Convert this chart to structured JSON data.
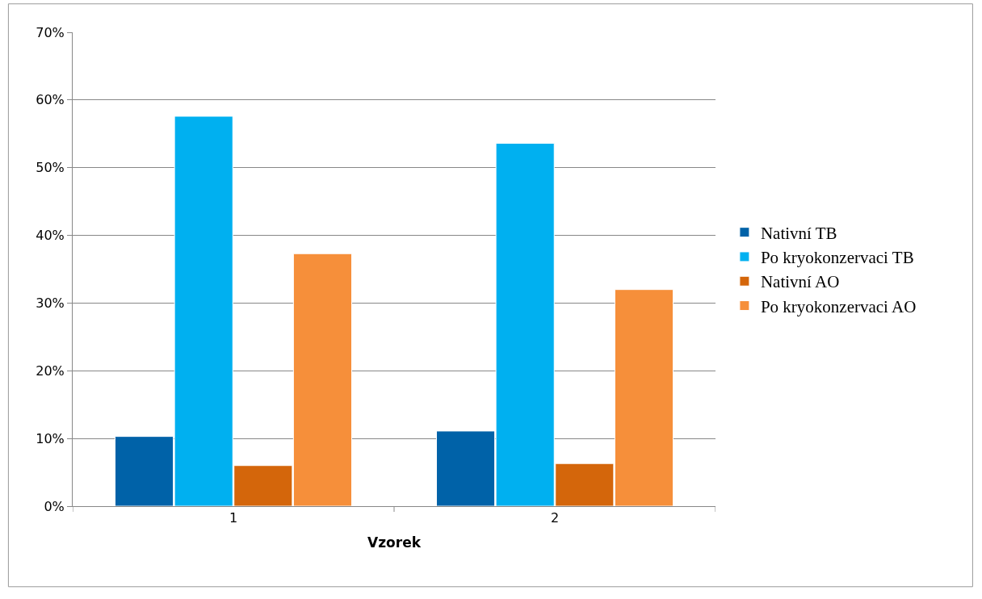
{
  "chart_data": {
    "type": "bar",
    "xlabel": "Vzorek",
    "categories": [
      "1",
      "2"
    ],
    "series": [
      {
        "name": "Nativní TB",
        "color": "#0062a8",
        "values": [
          10.3,
          11.1
        ]
      },
      {
        "name": "Po kryokonzervaci TB",
        "color": "#00b0f0",
        "values": [
          57.6,
          53.6
        ]
      },
      {
        "name": "Nativní AO",
        "color": "#d4660b",
        "values": [
          6.0,
          6.3
        ]
      },
      {
        "name": "Po kryokonzervaci AO",
        "color": "#f68f3a",
        "values": [
          37.3,
          32.0
        ]
      }
    ],
    "ylim": [
      0,
      70
    ],
    "yticks": [
      {
        "value": 0,
        "label": "0%"
      },
      {
        "value": 10,
        "label": "10%"
      },
      {
        "value": 20,
        "label": "20%"
      },
      {
        "value": 30,
        "label": "30%"
      },
      {
        "value": 40,
        "label": "40%"
      },
      {
        "value": 50,
        "label": "50%"
      },
      {
        "value": 60,
        "label": "60%"
      },
      {
        "value": 70,
        "label": "70%"
      }
    ],
    "grid": "y",
    "legend": "right"
  }
}
